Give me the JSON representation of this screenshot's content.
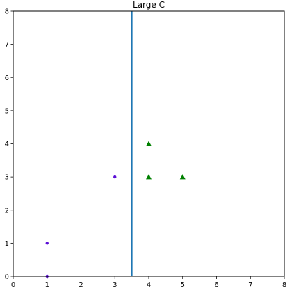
{
  "chart_data": {
    "type": "scatter",
    "title": "Large C",
    "xlabel": "",
    "ylabel": "",
    "xlim": [
      0,
      8
    ],
    "ylim": [
      0,
      8
    ],
    "xticks": [
      0,
      1,
      2,
      3,
      4,
      5,
      6,
      7,
      8
    ],
    "yticks": [
      0,
      1,
      2,
      3,
      4,
      5,
      6,
      7,
      8
    ],
    "xtick_labels": [
      "0",
      "1",
      "2",
      "3",
      "4",
      "5",
      "6",
      "7",
      "8"
    ],
    "ytick_labels": [
      "0",
      "1",
      "2",
      "3",
      "4",
      "5",
      "6",
      "7",
      "8"
    ],
    "grid": false,
    "series": [
      {
        "marker": "circle",
        "color": "#5b0fd6",
        "points": [
          [
            1,
            0
          ],
          [
            1,
            1
          ],
          [
            3,
            3
          ]
        ]
      },
      {
        "marker": "triangle",
        "color": "#008000",
        "points": [
          [
            4,
            3
          ],
          [
            4,
            4
          ],
          [
            5,
            3
          ]
        ]
      }
    ],
    "vlines": [
      {
        "x": 3.5,
        "color": "#1f77b4"
      }
    ]
  }
}
